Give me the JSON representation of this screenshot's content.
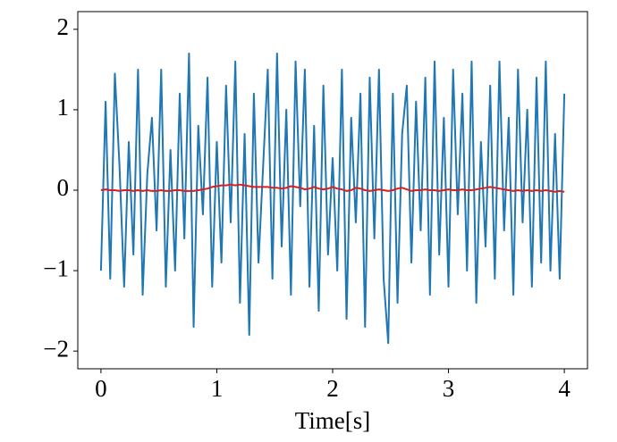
{
  "chart_data": {
    "type": "line",
    "x_label": "Time[s]",
    "x": [
      0,
      0.04,
      0.08,
      0.12,
      0.16,
      0.2,
      0.24,
      0.28,
      0.32,
      0.36,
      0.4,
      0.44,
      0.48,
      0.52,
      0.56,
      0.6,
      0.64,
      0.68,
      0.72,
      0.76,
      0.8,
      0.84,
      0.88,
      0.92,
      0.96,
      1.0,
      1.04,
      1.08,
      1.12,
      1.16,
      1.2,
      1.24,
      1.28,
      1.32,
      1.36,
      1.4,
      1.44,
      1.48,
      1.52,
      1.56,
      1.6,
      1.64,
      1.68,
      1.72,
      1.76,
      1.8,
      1.84,
      1.88,
      1.92,
      1.96,
      2.0,
      2.04,
      2.08,
      2.12,
      2.16,
      2.2,
      2.24,
      2.28,
      2.32,
      2.36,
      2.4,
      2.44,
      2.48,
      2.52,
      2.56,
      2.6,
      2.64,
      2.68,
      2.72,
      2.76,
      2.8,
      2.84,
      2.88,
      2.92,
      2.96,
      3.0,
      3.04,
      3.08,
      3.12,
      3.16,
      3.2,
      3.24,
      3.28,
      3.32,
      3.36,
      3.4,
      3.44,
      3.48,
      3.52,
      3.56,
      3.6,
      3.64,
      3.68,
      3.72,
      3.76,
      3.8,
      3.84,
      3.88,
      3.92,
      3.96,
      4.0
    ],
    "series": [
      {
        "color": "#1f77b4",
        "values": [
          -1.0,
          1.1,
          -1.1,
          1.45,
          0.3,
          -1.2,
          0.6,
          -0.8,
          1.5,
          -1.3,
          0.2,
          0.9,
          -0.5,
          1.5,
          -1.2,
          0.5,
          -1.0,
          1.2,
          -0.6,
          1.7,
          -1.7,
          0.8,
          -0.3,
          1.4,
          -1.2,
          0.6,
          -0.9,
          1.3,
          -0.4,
          1.6,
          -1.4,
          0.7,
          -1.8,
          1.2,
          -0.9,
          0.3,
          1.5,
          -1.1,
          1.7,
          -0.7,
          1.0,
          -1.3,
          1.6,
          -0.2,
          1.5,
          -1.2,
          0.8,
          -1.5,
          1.3,
          -0.8,
          0.4,
          -1.0,
          1.5,
          -1.6,
          0.9,
          -0.4,
          1.2,
          -1.7,
          1.4,
          -0.6,
          1.5,
          -1.1,
          -1.9,
          1.2,
          -1.4,
          0.7,
          1.3,
          -0.9,
          1.1,
          -0.5,
          1.4,
          -1.3,
          1.6,
          -0.8,
          0.9,
          -1.2,
          1.5,
          -0.3,
          1.2,
          -1.0,
          1.6,
          -1.4,
          0.6,
          -0.7,
          1.3,
          -1.1,
          1.6,
          -0.5,
          0.9,
          -1.3,
          1.5,
          -0.4,
          1.0,
          -1.2,
          1.4,
          -0.9,
          1.6,
          -1.0,
          0.7,
          -1.1,
          1.2
        ]
      },
      {
        "color": "#d62020",
        "values": [
          0.0,
          0.01,
          0.0,
          0.0,
          -0.01,
          0.0,
          0.0,
          -0.01,
          0.0,
          -0.01,
          0.0,
          -0.01,
          -0.01,
          0.0,
          -0.01,
          -0.01,
          0.0,
          0.0,
          -0.01,
          -0.01,
          -0.01,
          0.0,
          0.01,
          0.02,
          0.04,
          0.05,
          0.06,
          0.06,
          0.07,
          0.06,
          0.07,
          0.06,
          0.05,
          0.04,
          0.04,
          0.04,
          0.04,
          0.03,
          0.03,
          0.02,
          0.03,
          0.05,
          0.04,
          0.03,
          0.01,
          0.02,
          0.04,
          0.02,
          0.01,
          0.02,
          0.04,
          0.02,
          0.01,
          -0.01,
          0.0,
          0.03,
          0.02,
          0.0,
          -0.01,
          0.0,
          0.01,
          0.0,
          -0.01,
          0.0,
          0.02,
          0.03,
          0.01,
          -0.01,
          0.0,
          0.0,
          0.01,
          0.0,
          0.0,
          -0.01,
          0.0,
          0.01,
          0.0,
          0.0,
          0.01,
          0.0,
          0.0,
          0.01,
          0.02,
          0.03,
          0.04,
          0.03,
          0.02,
          0.01,
          0.0,
          -0.01,
          0.0,
          -0.01,
          0.0,
          -0.01,
          0.0,
          -0.01,
          0.0,
          -0.01,
          -0.02,
          -0.01,
          -0.02
        ]
      }
    ],
    "xlim": [
      -0.2,
      4.2
    ],
    "ylim": [
      -2.22,
      2.22
    ],
    "xticks": [
      0,
      1,
      2,
      3,
      4
    ],
    "yticks": [
      {
        "value": -2,
        "label": "−2"
      },
      {
        "value": -1,
        "label": "−1"
      },
      0,
      1,
      2
    ]
  }
}
